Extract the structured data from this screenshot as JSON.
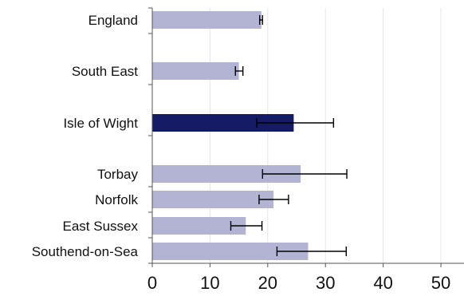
{
  "chart_data": {
    "type": "bar",
    "orientation": "horizontal",
    "title": "",
    "xlabel": "",
    "ylabel": "",
    "xlim": [
      0,
      54
    ],
    "x_ticks": [
      0,
      10,
      20,
      30,
      40,
      50
    ],
    "grid": true,
    "categories": [
      "England",
      "South East",
      "Isle of Wight",
      "Torbay",
      "Norfolk",
      "East Sussex",
      "Southend-on-Sea"
    ],
    "values": [
      18.9,
      15.0,
      24.5,
      25.7,
      21.0,
      16.2,
      27.0
    ],
    "error_low": [
      18.6,
      14.4,
      18.1,
      19.1,
      18.5,
      13.6,
      21.6
    ],
    "error_high": [
      19.1,
      15.7,
      31.4,
      33.7,
      23.6,
      19.0,
      33.6
    ],
    "highlight": "Isle of Wight",
    "colors": {
      "bar": "#b3b3d4",
      "highlight": "#141a63",
      "error_bar": "#000000",
      "grid": "#e6e6e6",
      "axis": "#555555"
    }
  }
}
